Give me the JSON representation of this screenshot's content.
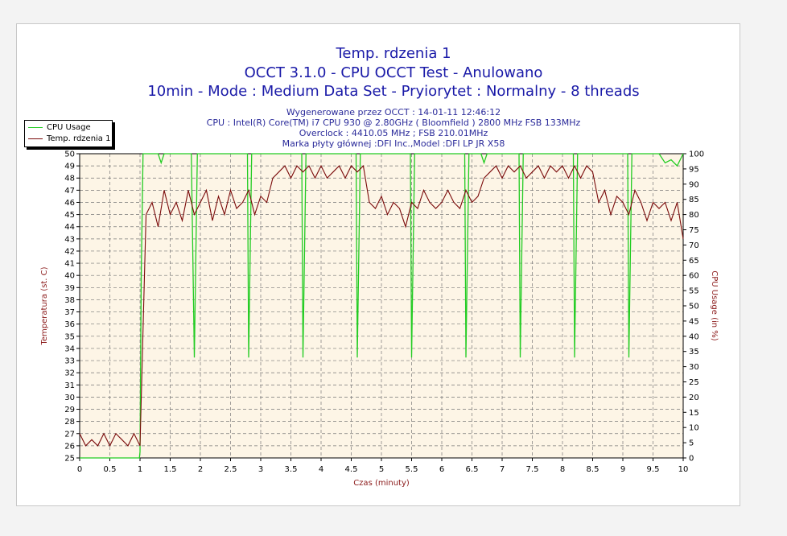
{
  "chart_data": {
    "type": "line",
    "title": [
      "Temp. rdzenia 1",
      "OCCT 3.1.0 - CPU OCCT Test - Anulowano",
      "10min - Mode : Medium Data Set - Pryiorytet : Normalny - 8 threads"
    ],
    "subtitle": [
      "Wygenerowane przez OCCT : 14-01-11 12:46:12",
      "CPU : Intel(R) Core(TM) i7 CPU 930 @ 2.80GHz ( Bloomfield ) 2800 MHz FSB 133MHz",
      "Overclock : 4410.05 MHz ; FSB 210.01MHz",
      "Marka płyty głównej :DFI Inc.,Model :DFI LP JR X58"
    ],
    "xlabel": "Czas (minuty)",
    "ylabel": "Temperatura (st. C)",
    "y2label": "CPU Usage (in %)",
    "xlim": [
      0,
      10
    ],
    "ylim": [
      25,
      50
    ],
    "y2lim": [
      0,
      100
    ],
    "grid": true,
    "legend_position": "top-left",
    "xticks": [
      "0",
      "0.5",
      "1",
      "1.5",
      "2",
      "2.5",
      "3",
      "3.5",
      "4",
      "4.5",
      "5",
      "5.5",
      "6",
      "6.5",
      "7",
      "7.5",
      "8",
      "8.5",
      "9",
      "9.5",
      "10"
    ],
    "colors": {
      "cpu": "#22cc22",
      "temp": "#7a0a0a",
      "plot_bg": "#fdf5e6"
    },
    "series": [
      {
        "name": "CPU Usage",
        "axis": "right",
        "x": [
          0,
          0.99,
          1.0,
          1.02,
          1.05,
          1.3,
          1.35,
          1.4,
          1.85,
          1.88,
          1.9,
          1.92,
          1.95,
          2.78,
          2.8,
          2.82,
          2.85,
          3.68,
          3.7,
          3.72,
          3.75,
          4.58,
          4.6,
          4.62,
          4.65,
          5.48,
          5.5,
          5.52,
          5.55,
          6.38,
          6.4,
          6.42,
          6.45,
          6.65,
          6.7,
          6.75,
          7.28,
          7.3,
          7.32,
          7.35,
          8.18,
          8.2,
          8.22,
          8.25,
          9.08,
          9.1,
          9.12,
          9.15,
          9.6,
          9.7,
          9.8,
          9.9,
          10
        ],
        "values": [
          0,
          0,
          2,
          60,
          100,
          100,
          97,
          100,
          100,
          60,
          33,
          60,
          100,
          100,
          33,
          60,
          100,
          100,
          33,
          60,
          100,
          100,
          33,
          60,
          100,
          100,
          33,
          60,
          100,
          100,
          33,
          60,
          100,
          100,
          97,
          100,
          100,
          33,
          60,
          100,
          100,
          33,
          60,
          100,
          100,
          33,
          60,
          100,
          100,
          97,
          98,
          96,
          100
        ]
      },
      {
        "name": "Temp. rdzenia 1",
        "axis": "left",
        "x_step": 0.1,
        "values": [
          27,
          26,
          26.5,
          26,
          27,
          26,
          27,
          26.5,
          26,
          27,
          26,
          45,
          46,
          44,
          47,
          45,
          46,
          44.5,
          47,
          45,
          46,
          47,
          44.5,
          46.5,
          45,
          47,
          45.5,
          46,
          47,
          45,
          46.5,
          46,
          48,
          48.5,
          49,
          48,
          49,
          48.5,
          49,
          48,
          49,
          48,
          48.5,
          49,
          48,
          49,
          48.5,
          49,
          46,
          45.5,
          46.5,
          45,
          46,
          45.5,
          44,
          46,
          45.5,
          47,
          46,
          45.5,
          46,
          47,
          46,
          45.5,
          47,
          46,
          46.5,
          48,
          48.5,
          49,
          48,
          49,
          48.5,
          49,
          48,
          48.5,
          49,
          48,
          49,
          48.5,
          49,
          48,
          49,
          48,
          49,
          48.5,
          46,
          47,
          45,
          46.5,
          46,
          45,
          47,
          46,
          44.5,
          46,
          45.5,
          46,
          44.5,
          46,
          43
        ]
      }
    ]
  }
}
